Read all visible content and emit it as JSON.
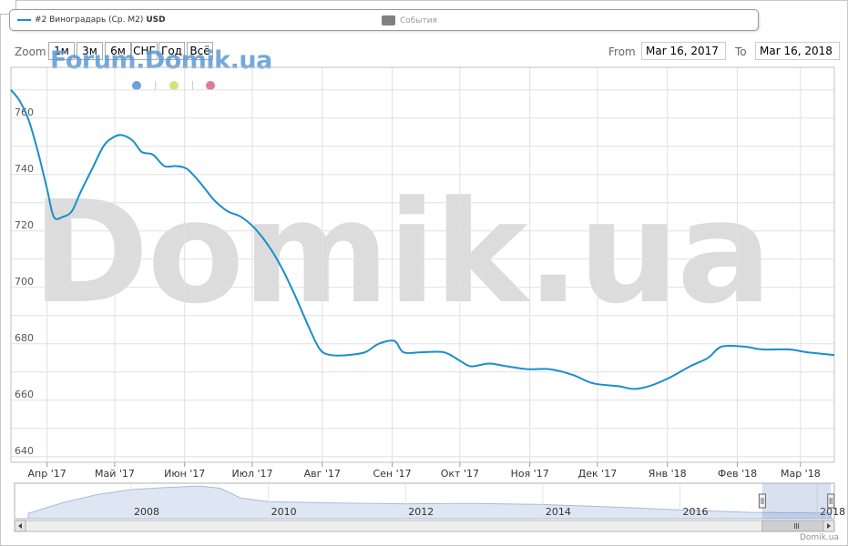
{
  "legend": {
    "series_label": "#2 Виноградарь (Ср. М2)",
    "series_unit": "USD",
    "events_label": "События"
  },
  "toolbar": {
    "zoom_label": "Zoom",
    "zoom_buttons": [
      "1м",
      "3м",
      "6м",
      "СНГ",
      "Год",
      "Всё"
    ],
    "from_label": "From",
    "from_value": "Mar 16, 2017",
    "to_label": "To",
    "to_value": "Mar 16, 2018"
  },
  "watermark": {
    "small": "Forum.Domik.ua",
    "big": "Domik.ua"
  },
  "credit": "Domik.ua",
  "colors": {
    "series": "#1a8fc9",
    "events": "#808080",
    "dot_blue": "#6fa0d8",
    "dot_yellow": "#d8e07a",
    "dot_pink": "#e07a9a",
    "navigator_fill": "#dde6f2",
    "navigator_line": "#a8bcd8",
    "grid": "#e0e0e0"
  },
  "chart_data": {
    "type": "line",
    "series": [
      {
        "name": "#2 Виноградарь (Ср. М2) USD",
        "points": [
          [
            "2017-03-16",
            770
          ],
          [
            "2017-03-20",
            766
          ],
          [
            "2017-03-24",
            759
          ],
          [
            "2017-03-28",
            748
          ],
          [
            "2017-04-01",
            735
          ],
          [
            "2017-04-04",
            725
          ],
          [
            "2017-04-08",
            725
          ],
          [
            "2017-04-12",
            727
          ],
          [
            "2017-04-16",
            734
          ],
          [
            "2017-04-21",
            742
          ],
          [
            "2017-04-26",
            750
          ],
          [
            "2017-04-30",
            753
          ],
          [
            "2017-05-04",
            754
          ],
          [
            "2017-05-09",
            752
          ],
          [
            "2017-05-13",
            748
          ],
          [
            "2017-05-18",
            747
          ],
          [
            "2017-05-23",
            743
          ],
          [
            "2017-05-28",
            743
          ],
          [
            "2017-06-02",
            742
          ],
          [
            "2017-06-08",
            737
          ],
          [
            "2017-06-14",
            731
          ],
          [
            "2017-06-20",
            727
          ],
          [
            "2017-06-26",
            725
          ],
          [
            "2017-07-02",
            721
          ],
          [
            "2017-07-08",
            715
          ],
          [
            "2017-07-14",
            707
          ],
          [
            "2017-07-20",
            697
          ],
          [
            "2017-07-26",
            686
          ],
          [
            "2017-07-31",
            678
          ],
          [
            "2017-08-05",
            676
          ],
          [
            "2017-08-12",
            676
          ],
          [
            "2017-08-20",
            677
          ],
          [
            "2017-08-26",
            680
          ],
          [
            "2017-09-02",
            681
          ],
          [
            "2017-09-06",
            677
          ],
          [
            "2017-09-14",
            677
          ],
          [
            "2017-09-24",
            677
          ],
          [
            "2017-10-01",
            674
          ],
          [
            "2017-10-06",
            672
          ],
          [
            "2017-10-14",
            673
          ],
          [
            "2017-10-22",
            672
          ],
          [
            "2017-10-31",
            671
          ],
          [
            "2017-11-10",
            671
          ],
          [
            "2017-11-20",
            669
          ],
          [
            "2017-11-29",
            666
          ],
          [
            "2017-12-10",
            665
          ],
          [
            "2017-12-17",
            664
          ],
          [
            "2017-12-24",
            665
          ],
          [
            "2018-01-02",
            668
          ],
          [
            "2018-01-11",
            672
          ],
          [
            "2018-01-19",
            675
          ],
          [
            "2018-01-25",
            679
          ],
          [
            "2018-02-04",
            679
          ],
          [
            "2018-02-12",
            678
          ],
          [
            "2018-02-24",
            678
          ],
          [
            "2018-03-04",
            677
          ],
          [
            "2018-03-16",
            676
          ]
        ]
      }
    ],
    "x_tick_labels": [
      [
        "2017-04-01",
        "Апр '17"
      ],
      [
        "2017-05-01",
        "Май '17"
      ],
      [
        "2017-06-01",
        "Июн '17"
      ],
      [
        "2017-07-01",
        "Июл '17"
      ],
      [
        "2017-08-01",
        "Авг '17"
      ],
      [
        "2017-09-01",
        "Сен '17"
      ],
      [
        "2017-10-01",
        "Окт '17"
      ],
      [
        "2017-11-01",
        "Ноя '17"
      ],
      [
        "2017-12-01",
        "Дек '17"
      ],
      [
        "2018-01-01",
        "Янв '18"
      ],
      [
        "2018-02-01",
        "Фев '18"
      ],
      [
        "2018-03-01",
        "Мар '18"
      ]
    ],
    "y_ticks": [
      640,
      660,
      680,
      700,
      720,
      740,
      760
    ],
    "xlim": [
      "2017-03-16",
      "2018-03-16"
    ],
    "ylim": [
      638,
      778
    ],
    "grid": true,
    "legend_position": "top",
    "navigator": {
      "year_labels": [
        "2008",
        "2010",
        "2012",
        "2014",
        "2016",
        "2018"
      ],
      "selected_range": [
        "2017-03-16",
        "2018-03-16"
      ],
      "profile": [
        [
          2006.5,
          0.15
        ],
        [
          2007.0,
          0.45
        ],
        [
          2007.5,
          0.68
        ],
        [
          2008.0,
          0.82
        ],
        [
          2008.5,
          0.88
        ],
        [
          2009.0,
          0.92
        ],
        [
          2009.3,
          0.86
        ],
        [
          2009.6,
          0.58
        ],
        [
          2010.0,
          0.48
        ],
        [
          2011.0,
          0.44
        ],
        [
          2012.0,
          0.42
        ],
        [
          2013.0,
          0.43
        ],
        [
          2014.0,
          0.4
        ],
        [
          2015.0,
          0.33
        ],
        [
          2016.0,
          0.25
        ],
        [
          2017.0,
          0.18
        ],
        [
          2018.2,
          0.16
        ]
      ]
    }
  }
}
